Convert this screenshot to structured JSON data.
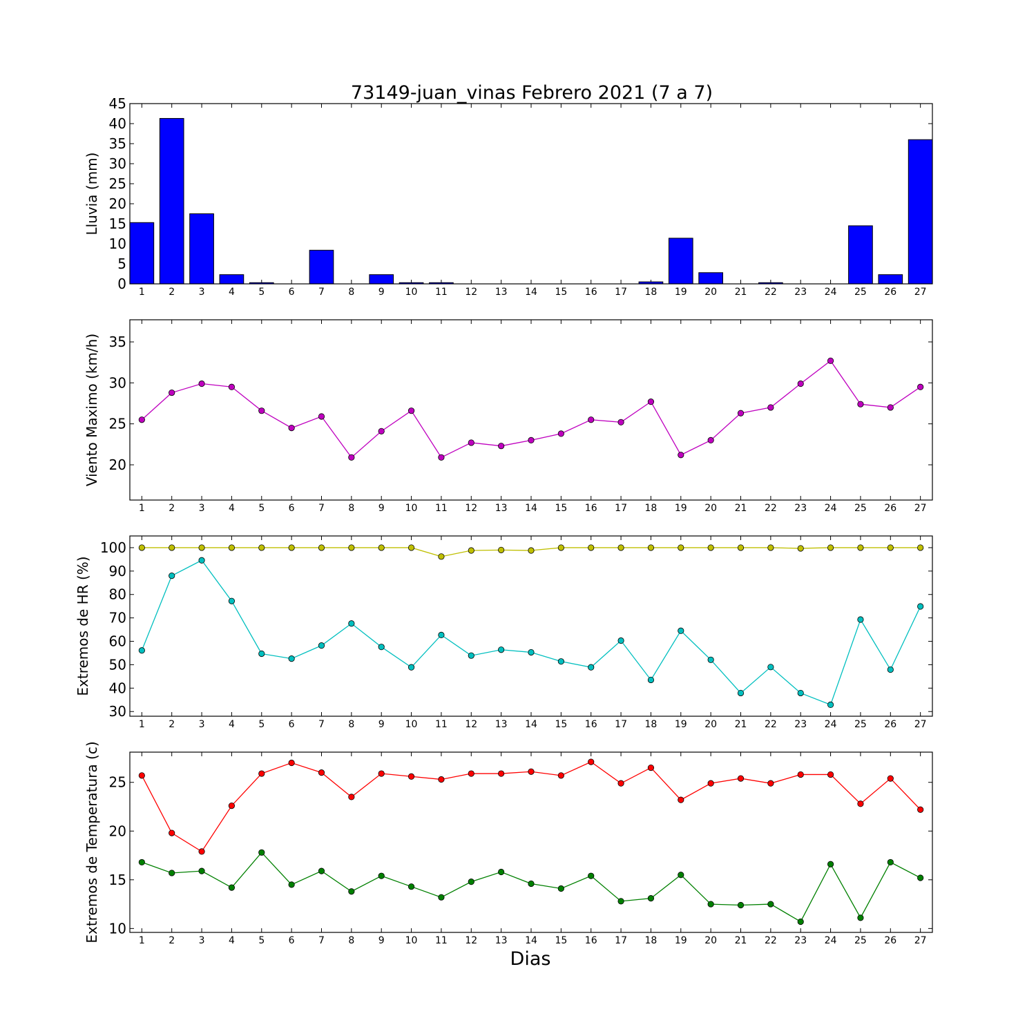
{
  "title": "73149-juan_vinas Febrero 2021  (7 a 7)",
  "xlabel": "Dias",
  "chart_data": [
    {
      "type": "bar",
      "ylabel": "Lluvia (mm)",
      "ylim": [
        0,
        45
      ],
      "yticks": [
        0,
        5,
        10,
        15,
        20,
        25,
        30,
        35,
        40,
        45
      ],
      "categories": [
        1,
        2,
        3,
        4,
        5,
        6,
        7,
        8,
        9,
        10,
        11,
        12,
        13,
        14,
        15,
        16,
        17,
        18,
        19,
        20,
        21,
        22,
        23,
        24,
        25,
        26,
        27
      ],
      "series": [
        {
          "color": "#0000ff",
          "values": [
            15.3,
            41.3,
            17.5,
            2.3,
            0.3,
            0.0,
            8.4,
            0.0,
            2.3,
            0.3,
            0.3,
            0.0,
            0.0,
            0.0,
            0.0,
            0.0,
            0.0,
            0.5,
            11.4,
            2.8,
            0.0,
            0.3,
            0.0,
            0.0,
            14.5,
            2.3,
            36.0
          ]
        }
      ]
    },
    {
      "type": "line",
      "ylabel": "Viento Maximo (km/h)",
      "ylim": [
        15.7,
        37.7
      ],
      "yticks": [
        20,
        25,
        30,
        35
      ],
      "categories": [
        1,
        2,
        3,
        4,
        5,
        6,
        7,
        8,
        9,
        10,
        11,
        12,
        13,
        14,
        15,
        16,
        17,
        18,
        19,
        20,
        21,
        22,
        23,
        24,
        25,
        26,
        27
      ],
      "series": [
        {
          "color": "#bf00bf",
          "values": [
            25.5,
            28.8,
            29.9,
            29.5,
            26.6,
            24.5,
            25.9,
            20.9,
            24.1,
            26.6,
            20.9,
            22.7,
            22.3,
            23.0,
            23.8,
            25.5,
            25.2,
            27.7,
            21.2,
            23.0,
            26.3,
            27.0,
            29.9,
            32.7,
            27.4,
            27.0,
            29.5
          ]
        }
      ]
    },
    {
      "type": "line",
      "ylabel": "Extremos de HR (%)",
      "ylim": [
        28,
        105
      ],
      "yticks": [
        30,
        40,
        50,
        60,
        70,
        80,
        90,
        100
      ],
      "categories": [
        1,
        2,
        3,
        4,
        5,
        6,
        7,
        8,
        9,
        10,
        11,
        12,
        13,
        14,
        15,
        16,
        17,
        18,
        19,
        20,
        21,
        22,
        23,
        24,
        25,
        26,
        27
      ],
      "series": [
        {
          "color": "#bfbf00",
          "values": [
            100,
            100,
            100,
            100,
            100,
            100,
            100,
            100,
            100,
            100,
            96.2,
            98.8,
            99.0,
            98.8,
            100,
            100,
            100,
            100,
            100,
            100,
            100,
            100,
            99.7,
            100,
            100,
            100,
            100
          ]
        },
        {
          "color": "#00bfbf",
          "values": [
            56.1,
            88.0,
            94.6,
            77.2,
            54.7,
            52.6,
            58.2,
            67.6,
            57.6,
            48.9,
            62.7,
            53.9,
            56.4,
            55.3,
            51.4,
            48.9,
            60.3,
            43.5,
            64.5,
            52.1,
            37.9,
            49.0,
            37.9,
            32.9,
            69.3,
            47.9,
            74.9
          ]
        }
      ]
    },
    {
      "type": "line",
      "ylabel": "Extremos de Temperatura (c)",
      "ylim": [
        9.6,
        28.1
      ],
      "yticks": [
        10,
        15,
        20,
        25
      ],
      "categories": [
        1,
        2,
        3,
        4,
        5,
        6,
        7,
        8,
        9,
        10,
        11,
        12,
        13,
        14,
        15,
        16,
        17,
        18,
        19,
        20,
        21,
        22,
        23,
        24,
        25,
        26,
        27
      ],
      "series": [
        {
          "color": "#ff0000",
          "values": [
            25.7,
            19.8,
            17.9,
            22.6,
            25.9,
            27.0,
            26.0,
            23.5,
            25.9,
            25.6,
            25.3,
            25.9,
            25.9,
            26.1,
            25.7,
            27.1,
            24.9,
            26.5,
            23.2,
            24.9,
            25.4,
            24.9,
            25.8,
            25.8,
            22.8,
            25.4,
            22.2
          ]
        },
        {
          "color": "#008000",
          "values": [
            16.8,
            15.7,
            15.9,
            14.2,
            17.8,
            14.5,
            15.9,
            13.8,
            15.4,
            14.3,
            13.2,
            14.8,
            15.8,
            14.6,
            14.1,
            15.4,
            12.8,
            13.1,
            15.5,
            12.5,
            12.4,
            12.5,
            10.7,
            16.6,
            11.1,
            16.8,
            15.2
          ]
        }
      ]
    }
  ]
}
